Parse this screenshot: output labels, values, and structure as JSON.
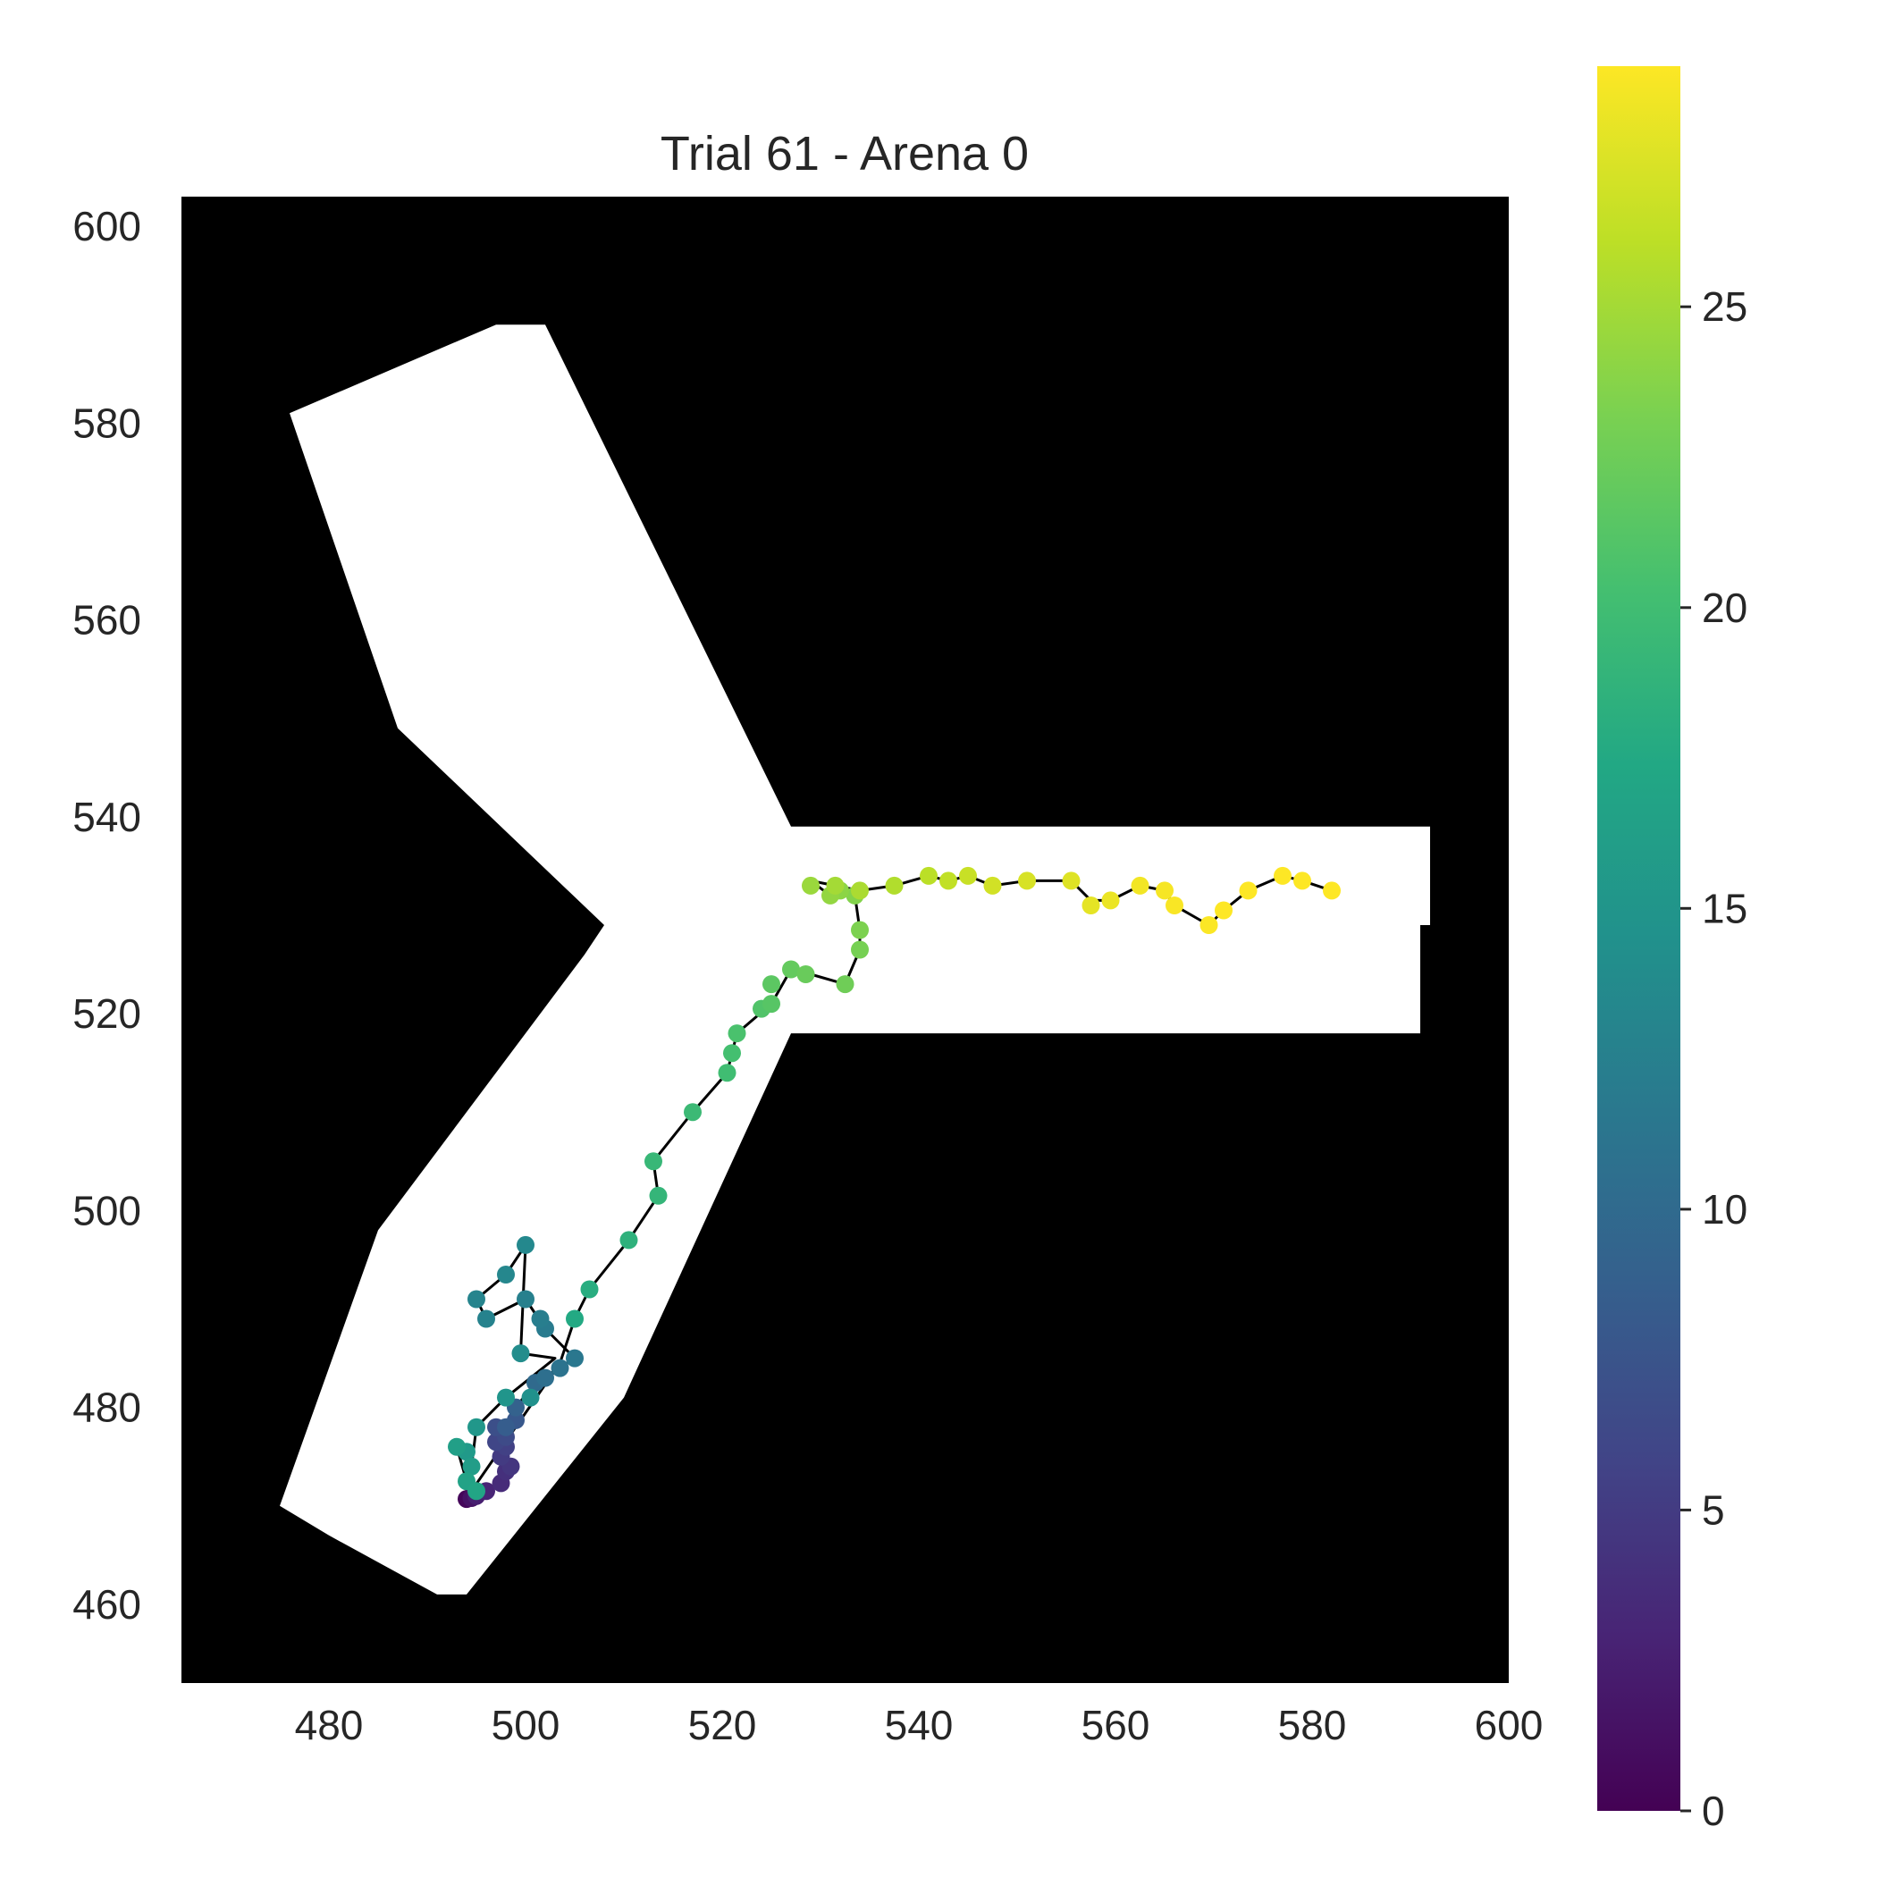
{
  "chart_data": {
    "type": "scatter",
    "title": "Trial 61 - Arena 0",
    "xlabel": "",
    "ylabel": "",
    "xlim": [
      465,
      600
    ],
    "ylim": [
      452,
      603
    ],
    "x_ticks": [
      480,
      500,
      520,
      540,
      560,
      580,
      600
    ],
    "y_ticks": [
      460,
      480,
      500,
      520,
      540,
      560,
      580,
      600
    ],
    "grid": false,
    "background": "arena mask: white Y-shaped maze on black",
    "arena_polygon": [
      [
        475,
        470
      ],
      [
        480,
        467
      ],
      [
        491,
        461
      ],
      [
        494,
        461
      ],
      [
        510,
        481
      ],
      [
        527,
        518
      ],
      [
        591,
        518
      ],
      [
        591,
        529
      ],
      [
        592,
        529
      ],
      [
        592,
        539
      ],
      [
        527,
        539
      ],
      [
        502,
        590
      ],
      [
        497,
        590
      ],
      [
        476,
        581
      ],
      [
        487,
        549
      ],
      [
        508,
        529
      ],
      [
        506,
        526
      ],
      [
        485,
        498
      ]
    ],
    "colorbar": {
      "colormap": "viridis",
      "range": [
        0,
        29
      ],
      "ticks": [
        0,
        5,
        10,
        15,
        20,
        25
      ]
    },
    "colors": {
      "trajectory_line": "#000000",
      "arena_fill": "#ffffff",
      "arena_background": "#000000"
    },
    "series": [
      {
        "c": [
          0,
          1,
          2,
          3,
          4,
          5,
          6,
          7,
          8,
          9,
          10,
          11,
          12,
          13,
          14,
          15,
          16,
          17,
          18,
          19,
          20,
          21,
          22,
          23,
          24,
          25,
          26,
          27,
          28,
          29
        ],
        "x": [
          494,
          494,
          496,
          498,
          497,
          499,
          503,
          499,
          495,
          498,
          503,
          500,
          496,
          499,
          496,
          493,
          505,
          510,
          513,
          515,
          520,
          524,
          528,
          532,
          531,
          540,
          550,
          560,
          570,
          580
        ],
        "y": [
          471,
          472,
          473,
          475,
          478,
          480,
          484,
          486,
          489,
          494,
          486,
          482,
          478,
          474,
          477,
          476,
          490,
          496,
          504,
          510,
          518,
          523,
          525,
          523,
          533,
          533,
          533,
          532,
          530,
          533
        ]
      }
    ],
    "points": [
      [
        494.0,
        470.7,
        0.5
      ],
      [
        494.5,
        470.8,
        1.5
      ],
      [
        495.0,
        471.0,
        2.5
      ],
      [
        496.0,
        471.5,
        3.0
      ],
      [
        497.5,
        472.3,
        3.5
      ],
      [
        498.0,
        473.5,
        4.0
      ],
      [
        498.5,
        474.0,
        4.5
      ],
      [
        497.5,
        475.0,
        5.0
      ],
      [
        498.0,
        476.0,
        5.5
      ],
      [
        497.0,
        476.5,
        6.0
      ],
      [
        498.0,
        477.0,
        6.5
      ],
      [
        497.0,
        478.0,
        7.0
      ],
      [
        499.0,
        478.7,
        8.0
      ],
      [
        498.0,
        478.0,
        8.5
      ],
      [
        499.0,
        480.0,
        9.0
      ],
      [
        501.0,
        482.5,
        10.0
      ],
      [
        502.0,
        483.0,
        10.5
      ],
      [
        503.5,
        484.0,
        11.0
      ],
      [
        505.0,
        485.0,
        11.5
      ],
      [
        502.0,
        488.0,
        12.0
      ],
      [
        501.5,
        489.0,
        12.3
      ],
      [
        500.0,
        491.0,
        12.5
      ],
      [
        496.0,
        489.0,
        12.8
      ],
      [
        495.0,
        491.0,
        13.0
      ],
      [
        498.0,
        493.5,
        13.3
      ],
      [
        500.0,
        496.5,
        13.5
      ],
      [
        499.5,
        485.5,
        14.0
      ],
      [
        500.5,
        481.0,
        14.5
      ],
      [
        498.0,
        481.0,
        15.0
      ],
      [
        495.0,
        478.0,
        15.3
      ],
      [
        494.0,
        475.5,
        15.6
      ],
      [
        494.5,
        474.0,
        16.0
      ],
      [
        493.0,
        476.0,
        16.3
      ],
      [
        494.0,
        472.5,
        16.6
      ],
      [
        495.0,
        471.5,
        17.0
      ],
      [
        505.0,
        489.0,
        17.5
      ],
      [
        506.5,
        492.0,
        18.0
      ],
      [
        510.5,
        497.0,
        18.5
      ],
      [
        513.5,
        501.5,
        19.0
      ],
      [
        513.0,
        505.0,
        19.3
      ],
      [
        517.0,
        510.0,
        19.6
      ],
      [
        520.5,
        514.0,
        20.0
      ],
      [
        521.0,
        516.0,
        20.3
      ],
      [
        521.5,
        518.0,
        20.6
      ],
      [
        524.0,
        520.5,
        21.0
      ],
      [
        525.0,
        521.0,
        21.3
      ],
      [
        525.0,
        523.0,
        21.6
      ],
      [
        527.0,
        524.5,
        22.0
      ],
      [
        528.5,
        524.0,
        22.3
      ],
      [
        532.5,
        523.0,
        22.6
      ],
      [
        534.0,
        526.5,
        23.0
      ],
      [
        534.0,
        528.5,
        23.3
      ],
      [
        533.5,
        532.0,
        23.6
      ],
      [
        532.0,
        532.5,
        24.0
      ],
      [
        531.0,
        532.0,
        24.3
      ],
      [
        529.0,
        533.0,
        24.6
      ],
      [
        531.5,
        533.0,
        25.0
      ],
      [
        534.0,
        532.5,
        25.3
      ],
      [
        537.5,
        533.0,
        25.6
      ],
      [
        541.0,
        534.0,
        26.0
      ],
      [
        543.0,
        533.5,
        26.3
      ],
      [
        545.0,
        534.0,
        26.6
      ],
      [
        547.5,
        533.0,
        27.0
      ],
      [
        551.0,
        533.5,
        27.3
      ],
      [
        555.5,
        533.5,
        27.6
      ],
      [
        557.5,
        531.0,
        27.9
      ],
      [
        559.5,
        531.5,
        28.2
      ],
      [
        562.5,
        533.0,
        28.5
      ],
      [
        565.0,
        532.5,
        28.7
      ],
      [
        566.0,
        531.0,
        28.8
      ],
      [
        569.5,
        529.0,
        28.9
      ],
      [
        571.0,
        530.5,
        29.0
      ],
      [
        573.5,
        532.5,
        29.0
      ],
      [
        577.0,
        534.0,
        29.0
      ],
      [
        579.0,
        533.5,
        29.0
      ],
      [
        582.0,
        532.5,
        29.0
      ]
    ],
    "trajectory": [
      [
        494.0,
        470.7
      ],
      [
        496.0,
        471.5
      ],
      [
        497.5,
        472.3
      ],
      [
        498.5,
        474.0
      ],
      [
        497.5,
        475.0
      ],
      [
        498.0,
        477.0
      ],
      [
        497.0,
        478.0
      ],
      [
        499.0,
        478.7
      ],
      [
        499.0,
        480.0
      ],
      [
        501.0,
        482.5
      ],
      [
        505.0,
        485.0
      ],
      [
        502.0,
        488.0
      ],
      [
        500.0,
        491.0
      ],
      [
        496.0,
        489.0
      ],
      [
        495.0,
        491.0
      ],
      [
        498.0,
        493.5
      ],
      [
        500.0,
        496.5
      ],
      [
        499.5,
        485.5
      ],
      [
        503.0,
        485.0
      ],
      [
        498.0,
        481.0
      ],
      [
        495.0,
        478.0
      ],
      [
        494.5,
        474.0
      ],
      [
        493.0,
        476.0
      ],
      [
        494.0,
        472.5
      ],
      [
        494.0,
        470.8
      ],
      [
        503.5,
        484.5
      ],
      [
        505.0,
        489.0
      ],
      [
        506.5,
        492.0
      ],
      [
        510.5,
        497.0
      ],
      [
        513.5,
        501.5
      ],
      [
        513.0,
        505.0
      ],
      [
        517.0,
        510.0
      ],
      [
        520.5,
        514.0
      ],
      [
        521.5,
        518.0
      ],
      [
        525.0,
        521.0
      ],
      [
        527.0,
        524.5
      ],
      [
        529.0,
        524.0
      ],
      [
        532.5,
        523.0
      ],
      [
        534.0,
        526.5
      ],
      [
        534.0,
        528.5
      ],
      [
        533.5,
        532.0
      ],
      [
        531.0,
        532.0
      ],
      [
        529.0,
        533.5
      ],
      [
        531.5,
        533.0
      ],
      [
        534.0,
        532.5
      ],
      [
        537.5,
        533.0
      ],
      [
        541.0,
        534.0
      ],
      [
        543.0,
        533.5
      ],
      [
        545.0,
        534.0
      ],
      [
        547.5,
        533.0
      ],
      [
        551.0,
        533.5
      ],
      [
        555.5,
        533.5
      ],
      [
        557.5,
        531.5
      ],
      [
        559.5,
        531.5
      ],
      [
        562.5,
        533.0
      ],
      [
        565.0,
        532.5
      ],
      [
        566.0,
        531.0
      ],
      [
        569.5,
        529.0
      ],
      [
        571.0,
        530.5
      ],
      [
        573.5,
        532.5
      ],
      [
        577.0,
        534.0
      ],
      [
        579.0,
        533.5
      ],
      [
        582.0,
        532.5
      ]
    ]
  }
}
